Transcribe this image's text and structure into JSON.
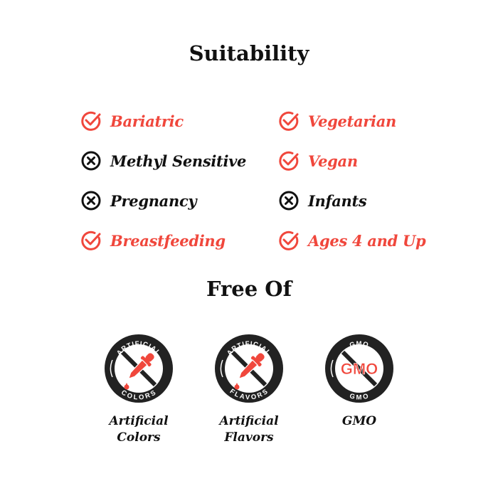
{
  "suitability": {
    "title": "Suitability",
    "left": [
      {
        "label": "Bariatric",
        "ok": true
      },
      {
        "label": "Methyl Sensitive",
        "ok": false
      },
      {
        "label": "Pregnancy",
        "ok": false
      },
      {
        "label": "Breastfeeding",
        "ok": true
      }
    ],
    "right": [
      {
        "label": "Vegetarian",
        "ok": true
      },
      {
        "label": "Vegan",
        "ok": true
      },
      {
        "label": "Infants",
        "ok": false
      },
      {
        "label": "Ages 4 and Up",
        "ok": true
      }
    ]
  },
  "free_of": {
    "title": "Free Of",
    "badges": [
      {
        "top": "ARTIFICIAL",
        "bottom": "COLORS",
        "center": "",
        "icon": "dropper-icon",
        "label_line1": "Artificial",
        "label_line2": "Colors"
      },
      {
        "top": "ARTIFICIAL",
        "bottom": "FLAVORS",
        "center": "",
        "icon": "dropper-icon",
        "label_line1": "Artificial",
        "label_line2": "Flavors"
      },
      {
        "top": "GMO",
        "bottom": "GMO",
        "center": "GMO",
        "icon": "gmo-text",
        "label_line1": "GMO",
        "label_line2": ""
      }
    ]
  },
  "colors": {
    "accent": "#f0473c",
    "dark": "#222222"
  }
}
